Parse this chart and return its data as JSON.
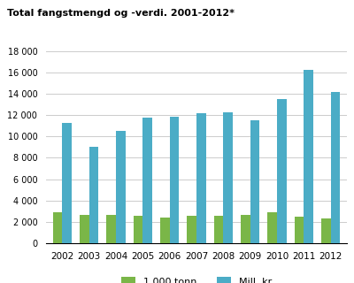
{
  "title": "Total fangstmengd og -verdi. 2001-2012*",
  "years": [
    2002,
    2003,
    2004,
    2005,
    2006,
    2007,
    2008,
    2009,
    2010,
    2011,
    2012
  ],
  "tonn": [
    2900,
    2700,
    2700,
    2600,
    2450,
    2600,
    2600,
    2700,
    2900,
    2500,
    2300
  ],
  "mill_kr": [
    11300,
    9050,
    10550,
    11800,
    11850,
    12200,
    12300,
    11500,
    13500,
    16200,
    14150
  ],
  "color_tonn": "#7ab648",
  "color_mill": "#4bacc6",
  "legend_tonn": "1 000 tonn",
  "legend_mill": "Mill. kr",
  "ylim": [
    0,
    18000
  ],
  "yticks": [
    0,
    2000,
    4000,
    6000,
    8000,
    10000,
    12000,
    14000,
    16000,
    18000
  ],
  "ytick_labels": [
    "0",
    "2 000",
    "4 000",
    "6 000",
    "8 000",
    "10 000",
    "12 000",
    "14 000",
    "16 000",
    "18 000"
  ],
  "bg_color": "#ffffff",
  "grid_color": "#cccccc"
}
